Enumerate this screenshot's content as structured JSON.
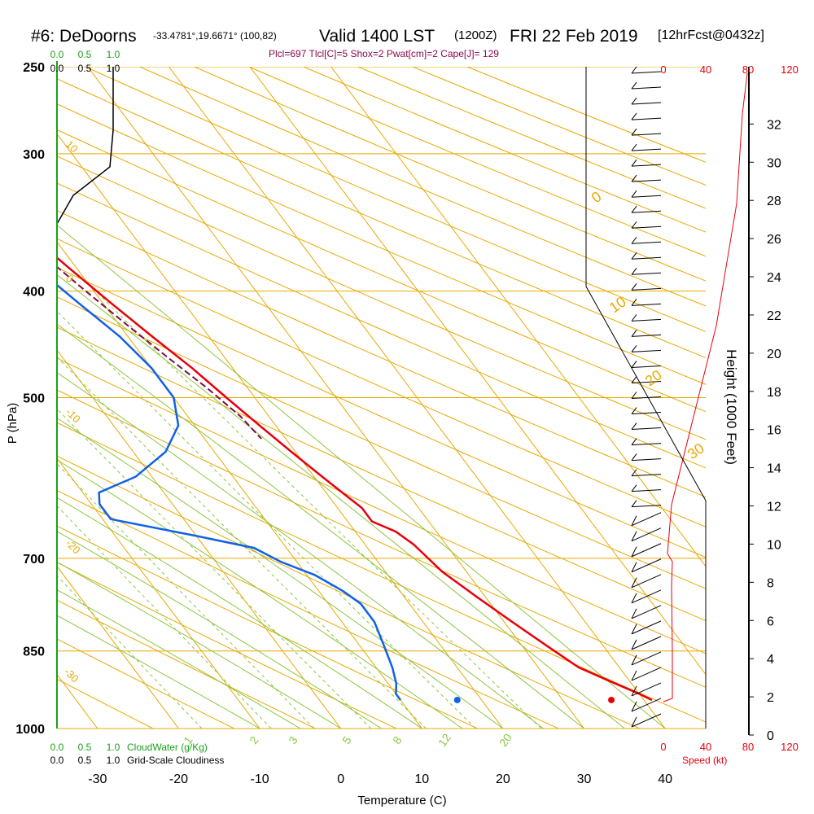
{
  "header": {
    "station": "#6: DeDoorns",
    "coords": "-33.4781°,19.6671° (100,82)",
    "valid": "Valid 1400 LST",
    "zulu": "(1200Z)",
    "date": "FRI 22 Feb 2019",
    "forecast": "[12hrFcst@0432z]",
    "params": "Plcl=697 Tlcl[C]=5 Shox=2 Pwat[cm]=2 Cape[J]= 129"
  },
  "chart_data": {
    "type": "line",
    "title": "#6: DeDoorns",
    "xlabel": "Temperature (C)",
    "ylabel": "P (hPa)",
    "y2label": "Height (1000 Feet)",
    "xlim": [
      -35,
      45
    ],
    "ylim_pressure": [
      250,
      1000
    ],
    "x_ticks": [
      "-30",
      "-20",
      "-10",
      "0",
      "10",
      "20",
      "30",
      "40"
    ],
    "pressure_ticks": [
      "250",
      "300",
      "400",
      "500",
      "700",
      "850",
      "1000"
    ],
    "height_ticks": [
      "0",
      "2",
      "4",
      "6",
      "8",
      "10",
      "12",
      "14",
      "16",
      "18",
      "20",
      "22",
      "24",
      "26",
      "28",
      "30",
      "32"
    ],
    "series": [
      {
        "role": "temperature",
        "color": "#e8000b",
        "points": [
          [
            -0.5,
            250
          ],
          [
            2,
            270
          ],
          [
            3.5,
            290
          ],
          [
            5,
            315
          ],
          [
            7,
            350
          ],
          [
            9,
            380
          ],
          [
            11,
            410
          ],
          [
            13,
            440
          ],
          [
            15,
            470
          ],
          [
            16.5,
            500
          ],
          [
            18,
            530
          ],
          [
            19.5,
            560
          ],
          [
            21,
            590
          ],
          [
            22,
            610
          ],
          [
            23,
            630
          ],
          [
            23,
            648
          ],
          [
            24,
            655
          ],
          [
            25,
            662
          ],
          [
            26,
            680
          ],
          [
            27,
            720
          ],
          [
            29,
            760
          ],
          [
            31,
            800
          ],
          [
            33,
            840
          ],
          [
            35,
            880
          ],
          [
            38,
            910
          ],
          [
            40,
            930
          ],
          [
            41,
            942
          ]
        ]
      },
      {
        "role": "dewpoint",
        "color": "#1060e8",
        "points": [
          [
            -4.5,
            250
          ],
          [
            -3,
            270
          ],
          [
            -1,
            290
          ],
          [
            1,
            315
          ],
          [
            3,
            350
          ],
          [
            5,
            380
          ],
          [
            7,
            410
          ],
          [
            9,
            440
          ],
          [
            10,
            470
          ],
          [
            10,
            500
          ],
          [
            8,
            530
          ],
          [
            4,
            560
          ],
          [
            -2,
            590
          ],
          [
            -8,
            610
          ],
          [
            -9,
            625
          ],
          [
            -9,
            645
          ],
          [
            0,
            668
          ],
          [
            6,
            685
          ],
          [
            8,
            705
          ],
          [
            11,
            725
          ],
          [
            13,
            750
          ],
          [
            14,
            770
          ],
          [
            14,
            800
          ],
          [
            13,
            840
          ],
          [
            12,
            880
          ],
          [
            11,
            910
          ],
          [
            10,
            930
          ],
          [
            10,
            942
          ]
        ]
      },
      {
        "role": "parcel",
        "color": "#7a0a4a",
        "points": [
          [
            3,
            310
          ],
          [
            5,
            340
          ],
          [
            7,
            370
          ],
          [
            9,
            400
          ],
          [
            11,
            430
          ],
          [
            13,
            460
          ],
          [
            15,
            490
          ],
          [
            16.5,
            520
          ],
          [
            17,
            545
          ]
        ]
      }
    ],
    "surface_points": [
      {
        "role": "dewpoint",
        "x": 17,
        "p": 942,
        "color": "#1060e8"
      },
      {
        "role": "temperature",
        "x": 36,
        "p": 942,
        "color": "#e8000b"
      }
    ],
    "cloud_water_labels": [
      "0.0",
      "0.5",
      "1.0"
    ],
    "cloud_water_caption": "CloudWater (g/Kg)",
    "cloudiness_labels": [
      "0.0",
      "0.5",
      "1.0"
    ],
    "cloudiness_caption": "Grid-Scale Cloudiness",
    "mixing_ratio_labels": [
      "1",
      "2",
      "3",
      "5",
      "8",
      "12",
      "20"
    ],
    "isotherm_labels": [
      "10",
      "0",
      "-10",
      "-20",
      "-30"
    ],
    "adiabat_labels": [
      "0",
      "10",
      "20",
      "30"
    ],
    "speed_labels": [
      "0",
      "40",
      "80",
      "120"
    ],
    "speed_caption": "Speed (kt)",
    "colors": {
      "grid": "#e8a800",
      "adiabat": "#8cc63f",
      "temperature": "#e8000b",
      "dewpoint": "#1060e8",
      "parcel": "#7a0a4a",
      "cloud": "#1aa01a",
      "speed": "#e8000b"
    }
  }
}
